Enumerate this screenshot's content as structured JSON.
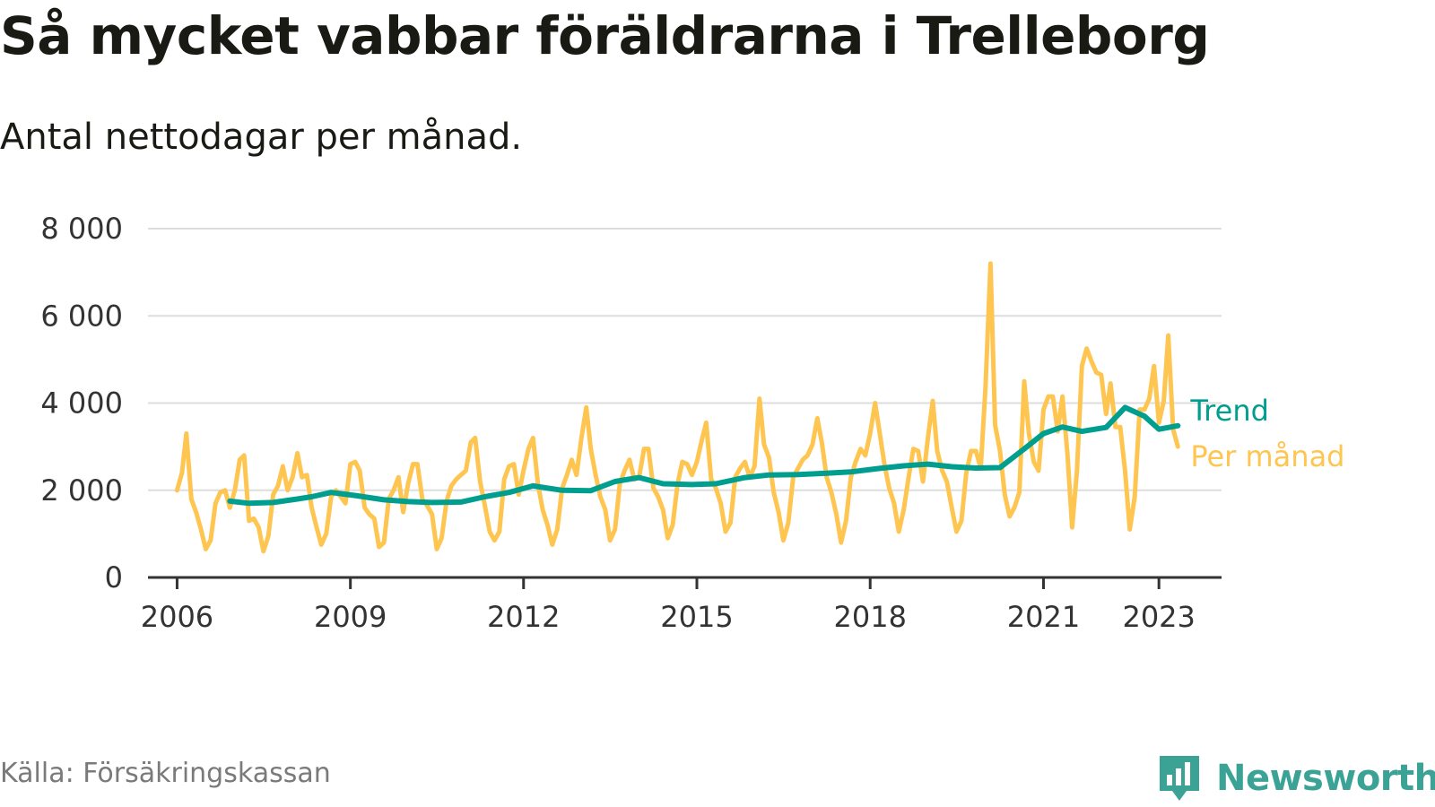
{
  "title": "Så mycket vabbar föräldrarna i Trelleborg",
  "subtitle": "Antal nettodagar per månad.",
  "source": "Källa: Försäkringskassan",
  "brand": {
    "name": "Newsworthy",
    "icon": "newsworthy-logo-icon"
  },
  "colors": {
    "per_month": "#FFC551",
    "trend": "#009E8E",
    "grid": "#DDDDDD",
    "axis": "#333333"
  },
  "chart_data": {
    "type": "line",
    "title": "Så mycket vabbar föräldrarna i Trelleborg",
    "subtitle": "Antal nettodagar per månad.",
    "xlabel": "",
    "ylabel": "",
    "ylim": [
      0,
      8000
    ],
    "xlim": [
      "2005-07-01",
      "2024-02-01"
    ],
    "yticks": [
      0,
      2000,
      4000,
      6000,
      8000
    ],
    "ytick_labels": [
      "0",
      "2 000",
      "4 000",
      "6 000",
      "8 000"
    ],
    "xticks": [
      "2006-01-01",
      "2009-01-01",
      "2012-01-01",
      "2015-01-01",
      "2018-01-01",
      "2021-01-01",
      "2023-01-01"
    ],
    "xtick_labels": [
      "2006",
      "2009",
      "2012",
      "2015",
      "2018",
      "2021",
      "2023"
    ],
    "grid": true,
    "legend": "direct-labels-right",
    "series": [
      {
        "name": "Per månad",
        "color": "#FFC551",
        "x": [
          "2006-01",
          "2006-02",
          "2006-03",
          "2006-04",
          "2006-05",
          "2006-06",
          "2006-07",
          "2006-08",
          "2006-09",
          "2006-10",
          "2006-11",
          "2006-12",
          "2007-01",
          "2007-02",
          "2007-03",
          "2007-04",
          "2007-05",
          "2007-06",
          "2007-07",
          "2007-08",
          "2007-09",
          "2007-10",
          "2007-11",
          "2007-12",
          "2008-01",
          "2008-02",
          "2008-03",
          "2008-04",
          "2008-05",
          "2008-06",
          "2008-07",
          "2008-08",
          "2008-09",
          "2008-10",
          "2008-11",
          "2008-12",
          "2009-01",
          "2009-02",
          "2009-03",
          "2009-04",
          "2009-05",
          "2009-06",
          "2009-07",
          "2009-08",
          "2009-09",
          "2009-10",
          "2009-11",
          "2009-12",
          "2010-01",
          "2010-02",
          "2010-03",
          "2010-04",
          "2010-05",
          "2010-06",
          "2010-07",
          "2010-08",
          "2010-09",
          "2010-10",
          "2010-11",
          "2010-12",
          "2011-01",
          "2011-02",
          "2011-03",
          "2011-04",
          "2011-05",
          "2011-06",
          "2011-07",
          "2011-08",
          "2011-09",
          "2011-10",
          "2011-11",
          "2011-12",
          "2012-01",
          "2012-02",
          "2012-03",
          "2012-04",
          "2012-05",
          "2012-06",
          "2012-07",
          "2012-08",
          "2012-09",
          "2012-10",
          "2012-11",
          "2012-12",
          "2013-01",
          "2013-02",
          "2013-03",
          "2013-04",
          "2013-05",
          "2013-06",
          "2013-07",
          "2013-08",
          "2013-09",
          "2013-10",
          "2013-11",
          "2013-12",
          "2014-01",
          "2014-02",
          "2014-03",
          "2014-04",
          "2014-05",
          "2014-06",
          "2014-07",
          "2014-08",
          "2014-09",
          "2014-10",
          "2014-11",
          "2014-12",
          "2015-01",
          "2015-02",
          "2015-03",
          "2015-04",
          "2015-05",
          "2015-06",
          "2015-07",
          "2015-08",
          "2015-09",
          "2015-10",
          "2015-11",
          "2015-12",
          "2016-01",
          "2016-02",
          "2016-03",
          "2016-04",
          "2016-05",
          "2016-06",
          "2016-07",
          "2016-08",
          "2016-09",
          "2016-10",
          "2016-11",
          "2016-12",
          "2017-01",
          "2017-02",
          "2017-03",
          "2017-04",
          "2017-05",
          "2017-06",
          "2017-07",
          "2017-08",
          "2017-09",
          "2017-10",
          "2017-11",
          "2017-12",
          "2018-01",
          "2018-02",
          "2018-03",
          "2018-04",
          "2018-05",
          "2018-06",
          "2018-07",
          "2018-08",
          "2018-09",
          "2018-10",
          "2018-11",
          "2018-12",
          "2019-01",
          "2019-02",
          "2019-03",
          "2019-04",
          "2019-05",
          "2019-06",
          "2019-07",
          "2019-08",
          "2019-09",
          "2019-10",
          "2019-11",
          "2019-12",
          "2020-01",
          "2020-02",
          "2020-03",
          "2020-04",
          "2020-05",
          "2020-06",
          "2020-07",
          "2020-08",
          "2020-09",
          "2020-10",
          "2020-11",
          "2020-12",
          "2021-01",
          "2021-02",
          "2021-03",
          "2021-04",
          "2021-05",
          "2021-06",
          "2021-07",
          "2021-08",
          "2021-09",
          "2021-10",
          "2021-11",
          "2021-12",
          "2022-01",
          "2022-02",
          "2022-03",
          "2022-04",
          "2022-05",
          "2022-06",
          "2022-07",
          "2022-08",
          "2022-09",
          "2022-10",
          "2022-11",
          "2022-12",
          "2023-01",
          "2023-02",
          "2023-03",
          "2023-04",
          "2023-05"
        ],
        "values": [
          2000,
          2400,
          3300,
          1800,
          1500,
          1100,
          650,
          850,
          1700,
          1950,
          2000,
          1600,
          2000,
          2700,
          2800,
          1300,
          1350,
          1150,
          600,
          950,
          1900,
          2100,
          2550,
          2000,
          2300,
          2850,
          2300,
          2350,
          1600,
          1150,
          750,
          1000,
          1850,
          2000,
          1850,
          1700,
          2600,
          2650,
          2450,
          1600,
          1450,
          1350,
          700,
          800,
          1800,
          2000,
          2300,
          1500,
          2150,
          2600,
          2600,
          1800,
          1650,
          1450,
          650,
          900,
          1750,
          2100,
          2250,
          2350,
          2450,
          3100,
          3200,
          2200,
          1650,
          1050,
          850,
          1050,
          2250,
          2550,
          2600,
          1900,
          2450,
          2950,
          3200,
          2150,
          1550,
          1200,
          750,
          1100,
          2050,
          2350,
          2700,
          2350,
          3200,
          3900,
          2950,
          2350,
          1850,
          1550,
          850,
          1100,
          2150,
          2450,
          2700,
          2250,
          2300,
          2950,
          2950,
          2050,
          1850,
          1550,
          900,
          1200,
          2150,
          2650,
          2600,
          2350,
          2650,
          3150,
          3550,
          2250,
          2050,
          1700,
          1050,
          1250,
          2300,
          2500,
          2650,
          2300,
          2550,
          4100,
          3050,
          2750,
          1950,
          1500,
          850,
          1250,
          2300,
          2500,
          2700,
          2800,
          3050,
          3650,
          3100,
          2300,
          1950,
          1450,
          800,
          1300,
          2300,
          2650,
          2950,
          2800,
          3300,
          4000,
          3350,
          2600,
          2050,
          1700,
          1050,
          1550,
          2300,
          2950,
          2900,
          2200,
          3200,
          4050,
          2900,
          2450,
          2200,
          1600,
          1050,
          1300,
          2400,
          2900,
          2900,
          2500,
          4400,
          7200,
          3500,
          2900,
          1900,
          1400,
          1600,
          1950,
          4500,
          3300,
          2650,
          2450,
          3850,
          4150,
          4150,
          3350,
          4150,
          2850,
          1150,
          2450,
          4850,
          5250,
          4950,
          4700,
          4650,
          3750,
          4450,
          3450,
          3450,
          2450,
          1100,
          1850,
          3850,
          3850,
          4100,
          4850,
          3550,
          4050,
          5550,
          3400,
          3000
        ]
      },
      {
        "name": "Trend",
        "color": "#009E8E",
        "x": [
          "2006-12",
          "2007-04",
          "2007-09",
          "2008-02",
          "2008-05",
          "2008-09",
          "2009-02",
          "2009-08",
          "2010-01",
          "2010-06",
          "2010-12",
          "2011-05",
          "2011-10",
          "2012-03",
          "2012-09",
          "2013-03",
          "2013-08",
          "2014-01",
          "2014-06",
          "2014-12",
          "2015-05",
          "2015-11",
          "2016-04",
          "2016-10",
          "2017-04",
          "2017-09",
          "2018-03",
          "2018-08",
          "2019-01",
          "2019-06",
          "2019-11",
          "2020-04",
          "2020-09",
          "2021-01",
          "2021-05",
          "2021-09",
          "2022-02",
          "2022-06",
          "2022-10",
          "2023-01",
          "2023-05"
        ],
        "values": [
          1750,
          1700,
          1720,
          1800,
          1850,
          1950,
          1880,
          1780,
          1740,
          1720,
          1730,
          1850,
          1950,
          2100,
          2000,
          1990,
          2200,
          2290,
          2150,
          2130,
          2150,
          2290,
          2350,
          2360,
          2390,
          2420,
          2500,
          2560,
          2600,
          2540,
          2510,
          2520,
          2950,
          3300,
          3450,
          3350,
          3440,
          3900,
          3700,
          3400,
          3480
        ]
      }
    ],
    "annotations": [
      {
        "text": "Trend",
        "series": "Trend"
      },
      {
        "text": "Per månad",
        "series": "Per månad"
      }
    ]
  }
}
